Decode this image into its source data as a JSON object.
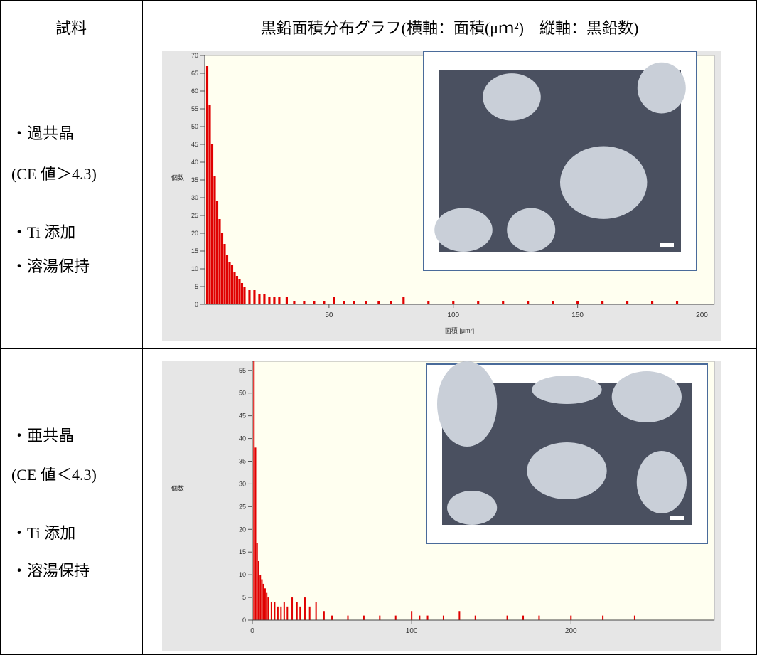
{
  "table": {
    "header": [
      "試料",
      "黒鉛面積分布グラフ(横軸：面積(μｍ²)　縦軸：黒鉛数)"
    ],
    "rows": [
      {
        "sample": [
          "・過共晶",
          "(CE 値＞4.3)",
          "・Ti 添加",
          "・溶湯保持"
        ],
        "chart_data": {
          "type": "bar",
          "x_label": "面積 [μm²]",
          "y_label": "個数",
          "color": "#e00000",
          "x": [
            1,
            2,
            3,
            4,
            5,
            6,
            7,
            8,
            9,
            10,
            11,
            12,
            13,
            14,
            15,
            16,
            18,
            20,
            22,
            24,
            26,
            28,
            30,
            33,
            36,
            40,
            44,
            48,
            52,
            56,
            60,
            65,
            70,
            75,
            80,
            90,
            100,
            110,
            120,
            130,
            140,
            150,
            160,
            170,
            180,
            190
          ],
          "values": [
            67,
            56,
            45,
            36,
            29,
            24,
            20,
            17,
            14,
            12,
            11,
            9,
            8,
            7,
            6,
            5,
            4,
            4,
            3,
            3,
            2,
            2,
            2,
            2,
            1,
            1,
            1,
            1,
            2,
            1,
            1,
            1,
            1,
            1,
            2,
            1,
            1,
            1,
            1,
            1,
            1,
            1,
            1,
            1,
            1,
            1
          ],
          "xlim": [
            0,
            205
          ],
          "ylim": [
            0,
            70
          ],
          "xticks": [
            50,
            100,
            150,
            200
          ],
          "yticks": [
            0,
            5,
            10,
            15,
            20,
            25,
            30,
            35,
            40,
            45,
            50,
            55,
            60,
            65,
            70
          ]
        }
      },
      {
        "sample": [
          "・亜共晶",
          "(CE 値＜4.3)",
          "・Ti 添加",
          "・溶湯保持"
        ],
        "chart_data": {
          "type": "bar",
          "y_label": "個数",
          "color": "#e00000",
          "x": [
            1,
            2,
            3,
            4,
            5,
            6,
            7,
            8,
            9,
            10,
            12,
            14,
            16,
            18,
            20,
            22,
            25,
            28,
            30,
            33,
            36,
            40,
            45,
            50,
            60,
            70,
            80,
            90,
            100,
            105,
            110,
            120,
            130,
            140,
            160,
            170,
            180,
            200,
            220,
            240
          ],
          "values": [
            57,
            38,
            17,
            13,
            10,
            9,
            8,
            7,
            6,
            5,
            4,
            4,
            3,
            3,
            4,
            3,
            5,
            4,
            3,
            5,
            3,
            4,
            2,
            1,
            1,
            1,
            1,
            1,
            2,
            1,
            1,
            1,
            2,
            1,
            1,
            1,
            1,
            1,
            1,
            1
          ],
          "xlim": [
            0,
            290
          ],
          "ylim": [
            0,
            57
          ],
          "xticks": [
            0,
            100,
            200
          ],
          "yticks": [
            0,
            5,
            10,
            15,
            20,
            25,
            30,
            35,
            40,
            45,
            50,
            55
          ]
        }
      }
    ]
  }
}
